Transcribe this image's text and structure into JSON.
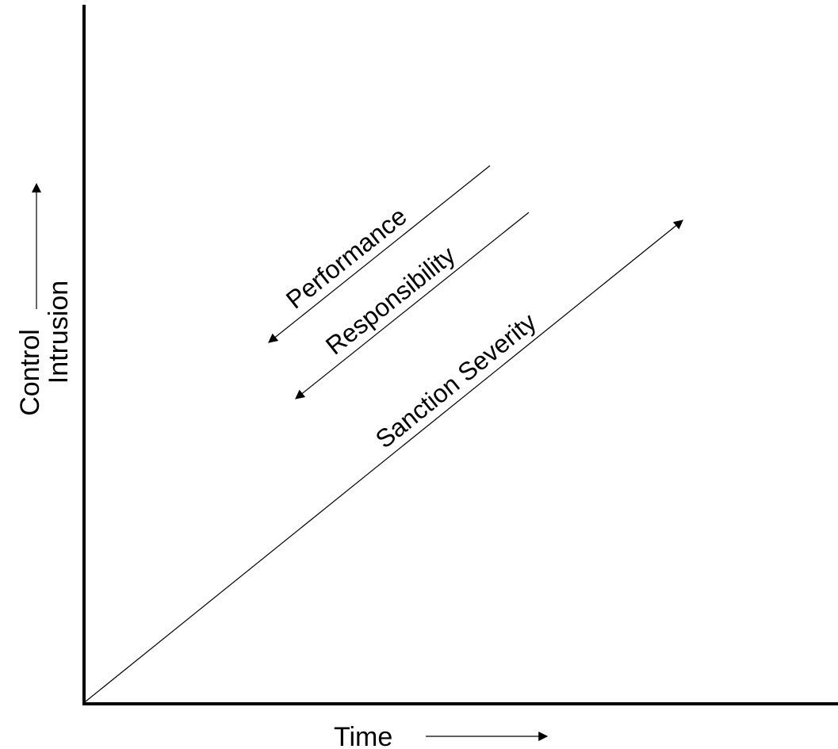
{
  "axes": {
    "y_label_line1": "Control",
    "y_label_line2": "Intrusion",
    "x_label": "Time"
  },
  "lines": {
    "performance": "Performance",
    "responsibility": "Responsibility",
    "sanction_severity": "Sanction Severity"
  },
  "colors": {
    "ink": "#000000",
    "background": "#ffffff"
  }
}
